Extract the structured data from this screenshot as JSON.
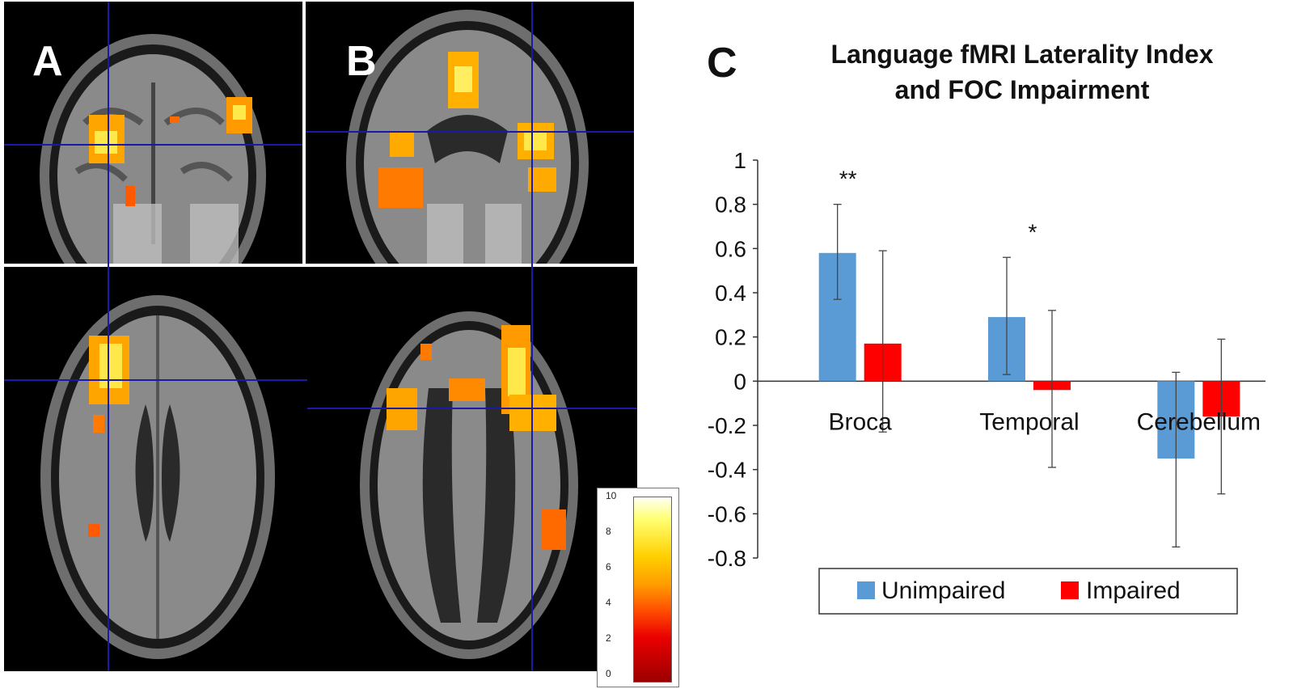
{
  "panels": {
    "a": {
      "letter": "A"
    },
    "b": {
      "letter": "B"
    },
    "c": {
      "letter": "C"
    }
  },
  "colorbar": {
    "ticks": [
      "10",
      "8",
      "6",
      "4",
      "2",
      "0"
    ]
  },
  "colors": {
    "unimpaired": "#5b9bd5",
    "impaired": "#ff0000",
    "crosshair": "#1a1aa8"
  },
  "chart_data": {
    "type": "bar",
    "title": [
      "Language fMRI Laterality Index",
      "and FOC Impairment"
    ],
    "categories": [
      "Broca",
      "Temporal",
      "Cerebellum"
    ],
    "ylim": [
      -0.8,
      1
    ],
    "yticks": [
      1,
      0.8,
      0.6,
      0.4,
      0.2,
      0,
      -0.2,
      -0.4,
      -0.6,
      -0.8
    ],
    "ytick_labels": [
      "1",
      "0.8",
      "0.6",
      "0.4",
      "0.2",
      "0",
      "-0.2",
      "-0.4",
      "-0.6",
      "-0.8"
    ],
    "series": [
      {
        "name": "Unimpaired",
        "values": [
          0.58,
          0.29,
          -0.35
        ],
        "err_low": [
          0.37,
          0.03,
          -0.75
        ],
        "err_high": [
          0.8,
          0.56,
          0.04
        ]
      },
      {
        "name": "Impaired",
        "values": [
          0.17,
          -0.04,
          -0.16
        ],
        "err_low": [
          -0.23,
          -0.39,
          -0.51
        ],
        "err_high": [
          0.59,
          0.32,
          0.19
        ]
      }
    ],
    "significance": [
      "**",
      "*",
      ""
    ],
    "legend_position": "bottom",
    "grid": false
  }
}
